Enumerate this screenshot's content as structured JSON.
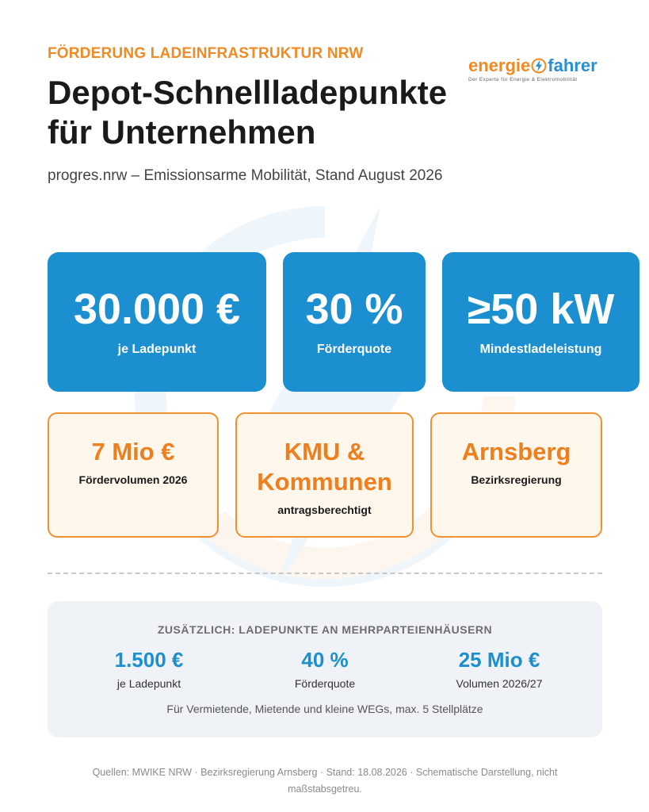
{
  "header": {
    "kicker": "FÖRDERUNG LADEINFRASTRUKTUR NRW",
    "title": "Depot-Schnellladepunkte für Unternehmen",
    "subtitle": "progres.nrw – Emissionsarme Mobilität, Stand August 2026"
  },
  "logo": {
    "part1": "energie",
    "part2": "fahrer",
    "tagline": "Der Experte für Energie & Elektromobilität"
  },
  "key_figures": [
    {
      "value": "30.000 €",
      "label": "je Ladepunkt"
    },
    {
      "value": "30 %",
      "label": "Förderquote"
    },
    {
      "value": "≥50 kW",
      "label": "Mindestladeleistung"
    }
  ],
  "details": [
    {
      "value": "7 Mio €",
      "label": "Fördervolumen 2026"
    },
    {
      "value": "KMU & Kommunen",
      "label": "antragsberechtigt"
    },
    {
      "value": "Arnsberg",
      "label": "Bezirksregierung"
    }
  ],
  "additional": {
    "heading": "ZUSÄTZLICH: LADEPUNKTE AN MEHRPARTEIENHÄUSERN",
    "stats": [
      {
        "value": "1.500 €",
        "label": "je Ladepunkt"
      },
      {
        "value": "40 %",
        "label": "Förderquote"
      },
      {
        "value": "25 Mio €",
        "label": "Volumen 2026/27"
      }
    ],
    "note": "Für Vermietende, Mietende und kleine WEGs, max. 5 Stellplätze"
  },
  "footer": "Quellen: MWIKE NRW · Bezirksregierung Arnsberg · Stand: 18.08.2026 · Schematische Darstellung, nicht maßstabsgetreu.",
  "colors": {
    "accent_orange": "#f08a24",
    "accent_blue": "#1b8fcf",
    "card_orange_bg": "#fff6ec",
    "panel_gray": "#eff2f6"
  },
  "icons": [
    "lightning-bolt-icon",
    "energy-swirl-watermark"
  ]
}
